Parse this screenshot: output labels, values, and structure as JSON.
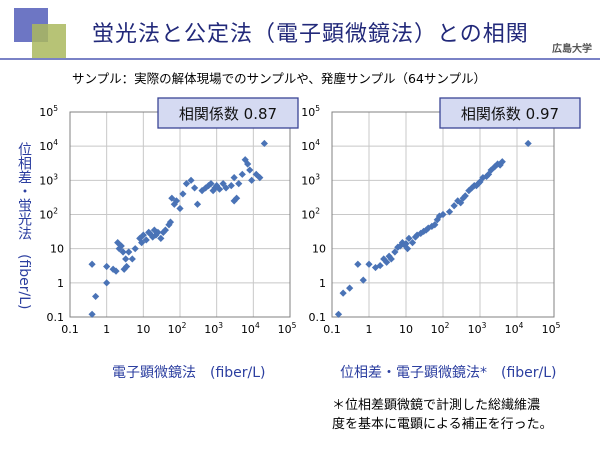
{
  "header": {
    "title": "蛍光法と公定法（電子顕微鏡法）との相関",
    "university": "広島大学",
    "sample_note": "サンプル：実際の解体現場でのサンプルや、発塵サンプル（64サンプル）"
  },
  "footnote": [
    "＊位相差顕微鏡で計測した総繊維濃",
    "度を基本に電顕による補正を行った。"
  ],
  "colors": {
    "marker": "#4a73b6",
    "title": "#22297a",
    "axis_label": "#2c3fa0",
    "box_fill": "#d5daf2"
  },
  "chart_data": [
    {
      "type": "scatter",
      "correlation_label": "相関係数 0.87",
      "xlabel": "電子顕微鏡法　(fiber/L)",
      "ylabel": "位相差・蛍光法　(fiber/L)",
      "scale": "log",
      "xlim": [
        0.1,
        100000
      ],
      "ylim": [
        0.1,
        100000
      ],
      "tick_labels": [
        "0.1",
        "1",
        "10",
        "10",
        "10",
        "10",
        "10"
      ],
      "tick_exponents": [
        "",
        "",
        "",
        "2",
        "3",
        "4",
        "5"
      ],
      "grid": true,
      "points": [
        [
          0.4,
          0.12
        ],
        [
          0.4,
          3.5
        ],
        [
          0.5,
          0.4
        ],
        [
          1.0,
          1.0
        ],
        [
          1.0,
          3.0
        ],
        [
          1.5,
          2.5
        ],
        [
          1.8,
          2.2
        ],
        [
          2.0,
          15
        ],
        [
          2.2,
          10
        ],
        [
          2.5,
          12
        ],
        [
          2.8,
          8
        ],
        [
          3.0,
          2.5
        ],
        [
          3.3,
          5
        ],
        [
          3.5,
          3
        ],
        [
          4.0,
          8
        ],
        [
          5.0,
          5
        ],
        [
          6.0,
          10
        ],
        [
          8.0,
          20
        ],
        [
          9.0,
          15
        ],
        [
          10,
          25
        ],
        [
          12,
          18
        ],
        [
          14,
          30
        ],
        [
          15,
          28
        ],
        [
          18,
          22
        ],
        [
          20,
          35
        ],
        [
          22,
          25
        ],
        [
          25,
          30
        ],
        [
          30,
          20
        ],
        [
          35,
          30
        ],
        [
          40,
          35
        ],
        [
          50,
          50
        ],
        [
          55,
          60
        ],
        [
          60,
          300
        ],
        [
          70,
          200
        ],
        [
          80,
          250
        ],
        [
          100,
          150
        ],
        [
          120,
          400
        ],
        [
          150,
          800
        ],
        [
          200,
          1000
        ],
        [
          250,
          600
        ],
        [
          300,
          200
        ],
        [
          400,
          500
        ],
        [
          500,
          600
        ],
        [
          600,
          700
        ],
        [
          700,
          800
        ],
        [
          800,
          500
        ],
        [
          900,
          600
        ],
        [
          1000,
          700
        ],
        [
          1200,
          550
        ],
        [
          1500,
          800
        ],
        [
          1800,
          600
        ],
        [
          2500,
          700
        ],
        [
          3000,
          250
        ],
        [
          3500,
          300
        ],
        [
          4000,
          800
        ],
        [
          5000,
          1500
        ],
        [
          6000,
          4000
        ],
        [
          7000,
          3000
        ],
        [
          8000,
          2000
        ],
        [
          9000,
          1000
        ],
        [
          12000,
          1500
        ],
        [
          15000,
          1200
        ],
        [
          20000,
          12000
        ],
        [
          3000,
          1200
        ]
      ]
    },
    {
      "type": "scatter",
      "correlation_label": "相関係数 0.97",
      "xlabel": "位相差・電子顕微鏡法*　(fiber/L)",
      "scale": "log",
      "xlim": [
        0.1,
        100000
      ],
      "ylim": [
        0.1,
        100000
      ],
      "tick_labels": [
        "0.1",
        "1",
        "10",
        "10",
        "10",
        "10",
        "10"
      ],
      "tick_exponents": [
        "",
        "",
        "",
        "2",
        "3",
        "4",
        "5"
      ],
      "grid": true,
      "points": [
        [
          0.15,
          0.12
        ],
        [
          0.2,
          0.5
        ],
        [
          0.3,
          0.7
        ],
        [
          0.5,
          3.5
        ],
        [
          0.7,
          1.2
        ],
        [
          1.0,
          3.5
        ],
        [
          1.5,
          2.8
        ],
        [
          2.0,
          3.2
        ],
        [
          2.5,
          5
        ],
        [
          3.0,
          4
        ],
        [
          3.5,
          6
        ],
        [
          4.0,
          5
        ],
        [
          5.0,
          8
        ],
        [
          6.0,
          11
        ],
        [
          7.0,
          12
        ],
        [
          8.0,
          15
        ],
        [
          9.0,
          13
        ],
        [
          10,
          14
        ],
        [
          11,
          10
        ],
        [
          12,
          20
        ],
        [
          15,
          15
        ],
        [
          18,
          22
        ],
        [
          20,
          25
        ],
        [
          25,
          28
        ],
        [
          30,
          32
        ],
        [
          35,
          35
        ],
        [
          40,
          40
        ],
        [
          50,
          45
        ],
        [
          60,
          50
        ],
        [
          70,
          70
        ],
        [
          80,
          90
        ],
        [
          100,
          100
        ],
        [
          150,
          120
        ],
        [
          200,
          180
        ],
        [
          250,
          250
        ],
        [
          300,
          220
        ],
        [
          350,
          300
        ],
        [
          400,
          350
        ],
        [
          500,
          500
        ],
        [
          600,
          600
        ],
        [
          700,
          700
        ],
        [
          800,
          700
        ],
        [
          900,
          800
        ],
        [
          1000,
          900
        ],
        [
          1200,
          1200
        ],
        [
          1500,
          1300
        ],
        [
          1700,
          1500
        ],
        [
          2000,
          2000
        ],
        [
          2500,
          2500
        ],
        [
          3000,
          3000
        ],
        [
          3500,
          2800
        ],
        [
          4000,
          3500
        ],
        [
          20000,
          12000
        ]
      ]
    }
  ]
}
